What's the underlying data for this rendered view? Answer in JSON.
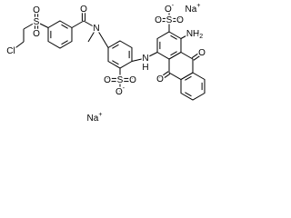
{
  "molecule": {
    "atoms": [
      {
        "label": "Cl"
      },
      {
        "label": "S"
      },
      {
        "label": "O"
      },
      {
        "label": "O"
      },
      {
        "label": "O"
      },
      {
        "label": "N"
      },
      {
        "label": "N"
      },
      {
        "label": "H"
      },
      {
        "label": "S"
      },
      {
        "label": "O"
      },
      {
        "label": "O"
      },
      {
        "label": "O",
        "charge": "-"
      },
      {
        "label": "Na",
        "charge": "+"
      },
      {
        "label": "S"
      },
      {
        "label": "O"
      },
      {
        "label": "O"
      },
      {
        "label": "O",
        "charge": "-"
      },
      {
        "label": "Na",
        "charge": "+"
      },
      {
        "label": "NH",
        "count": "2"
      },
      {
        "label": "O"
      },
      {
        "label": "O"
      }
    ]
  }
}
